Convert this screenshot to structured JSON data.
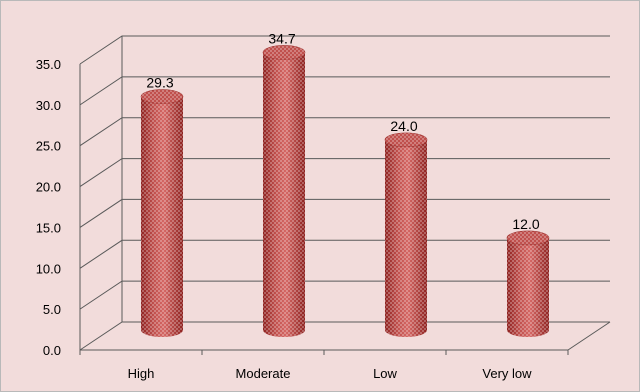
{
  "chart_data": {
    "type": "bar",
    "categories": [
      "High",
      "Moderate",
      "Low",
      "Very low"
    ],
    "values": [
      29.3,
      34.7,
      24.0,
      12.0
    ],
    "data_labels": [
      "29.3",
      "34.7",
      "24.0",
      "12.0"
    ],
    "ylim": [
      0,
      35
    ],
    "y_ticks": [
      "0.0",
      "5.0",
      "10.0",
      "15.0",
      "20.0",
      "25.0",
      "30.0",
      "35.0"
    ],
    "grid": true,
    "legend": "none",
    "style": "3d-cylinder",
    "colors": {
      "bar": "#c0504d",
      "bar_dark": "#7f1d1b",
      "bar_light": "#f3a9a6",
      "background": "#f2dcdb",
      "grid": "#5a5a5a"
    }
  }
}
